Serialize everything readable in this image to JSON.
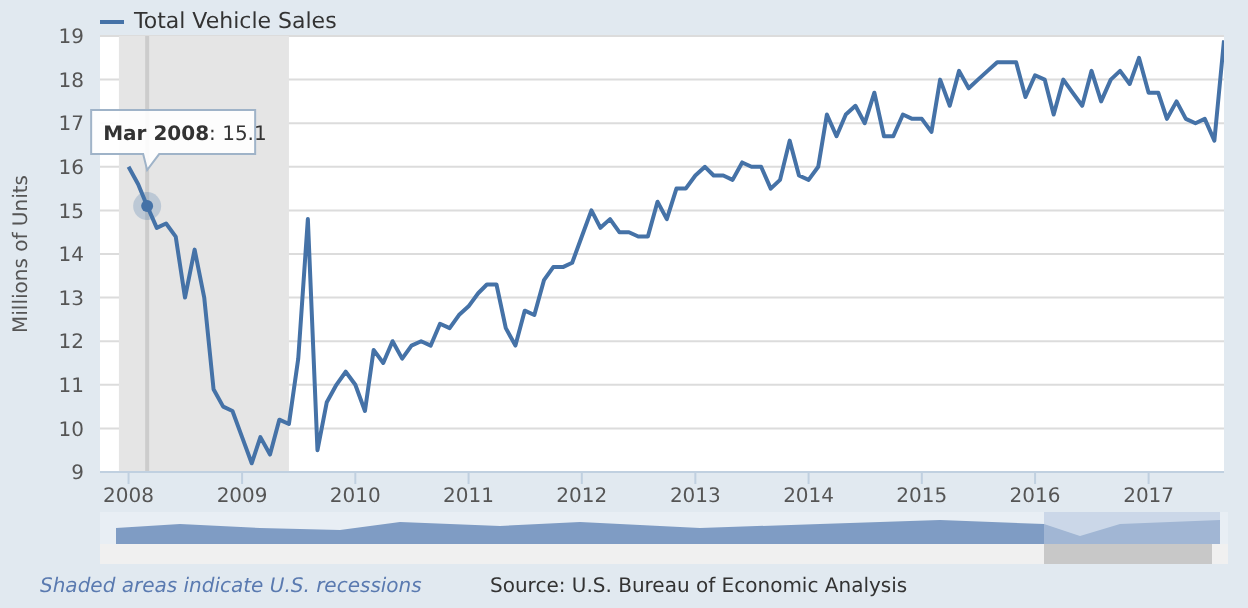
{
  "chart_data": {
    "type": "line",
    "ylabel": "Millions of Units",
    "x": [
      "2008-01",
      "2008-02",
      "2008-03",
      "2008-04",
      "2008-05",
      "2008-06",
      "2008-07",
      "2008-08",
      "2008-09",
      "2008-10",
      "2008-11",
      "2008-12",
      "2009-01",
      "2009-02",
      "2009-03",
      "2009-04",
      "2009-05",
      "2009-06",
      "2009-07",
      "2009-08",
      "2009-09",
      "2009-10",
      "2009-11",
      "2009-12",
      "2010-01",
      "2010-02",
      "2010-03",
      "2010-04",
      "2010-05",
      "2010-06",
      "2010-07",
      "2010-08",
      "2010-09",
      "2010-10",
      "2010-11",
      "2010-12",
      "2011-01",
      "2011-02",
      "2011-03",
      "2011-04",
      "2011-05",
      "2011-06",
      "2011-07",
      "2011-08",
      "2011-09",
      "2011-10",
      "2011-11",
      "2011-12",
      "2012-01",
      "2012-02",
      "2012-03",
      "2012-04",
      "2012-05",
      "2012-06",
      "2012-07",
      "2012-08",
      "2012-09",
      "2012-10",
      "2012-11",
      "2012-12",
      "2013-01",
      "2013-02",
      "2013-03",
      "2013-04",
      "2013-05",
      "2013-06",
      "2013-07",
      "2013-08",
      "2013-09",
      "2013-10",
      "2013-11",
      "2013-12",
      "2014-01",
      "2014-02",
      "2014-03",
      "2014-04",
      "2014-05",
      "2014-06",
      "2014-07",
      "2014-08",
      "2014-09",
      "2014-10",
      "2014-11",
      "2014-12",
      "2015-01",
      "2015-02",
      "2015-03",
      "2015-04",
      "2015-05",
      "2015-06",
      "2015-07",
      "2015-08",
      "2015-09",
      "2015-10",
      "2015-11",
      "2015-12",
      "2016-01",
      "2016-02",
      "2016-03",
      "2016-04",
      "2016-05",
      "2016-06",
      "2016-07",
      "2016-08",
      "2016-09",
      "2016-10",
      "2016-11",
      "2016-12",
      "2017-01",
      "2017-02",
      "2017-03",
      "2017-04",
      "2017-05",
      "2017-06",
      "2017-07",
      "2017-08",
      "2017-09"
    ],
    "series": [
      {
        "name": "Total Vehicle Sales",
        "color": "#4572a7",
        "values": [
          16.0,
          15.6,
          15.1,
          14.6,
          14.7,
          14.4,
          13.0,
          14.1,
          13.0,
          10.9,
          10.5,
          10.4,
          9.8,
          9.2,
          9.8,
          9.4,
          10.2,
          10.1,
          11.6,
          14.8,
          9.5,
          10.6,
          11.0,
          11.3,
          11.0,
          10.4,
          11.8,
          11.5,
          12.0,
          11.6,
          11.9,
          12.0,
          11.9,
          12.4,
          12.3,
          12.6,
          12.8,
          13.1,
          13.3,
          13.3,
          12.3,
          11.9,
          12.7,
          12.6,
          13.4,
          13.7,
          13.7,
          13.8,
          14.4,
          15.0,
          14.6,
          14.8,
          14.5,
          14.5,
          14.4,
          14.4,
          15.2,
          14.8,
          15.5,
          15.5,
          15.8,
          16.0,
          15.8,
          15.8,
          15.7,
          16.1,
          16.0,
          16.0,
          15.5,
          15.7,
          16.6,
          15.8,
          15.7,
          16.0,
          17.2,
          16.7,
          17.2,
          17.4,
          17.0,
          17.7,
          16.7,
          16.7,
          17.2,
          17.1,
          17.1,
          16.8,
          18.0,
          17.4,
          18.2,
          17.8,
          18.0,
          18.2,
          18.4,
          18.4,
          18.4,
          17.6,
          18.1,
          18.0,
          17.2,
          18.0,
          17.7,
          17.4,
          18.2,
          17.5,
          18.0,
          18.2,
          17.9,
          18.5,
          17.7,
          17.7,
          17.1,
          17.5,
          17.1,
          17.0,
          17.1,
          16.6,
          18.9
        ]
      }
    ],
    "xlim": [
      "2007-10",
      "2017-09"
    ],
    "xticks": [
      "2008",
      "2009",
      "2010",
      "2011",
      "2012",
      "2013",
      "2014",
      "2015",
      "2016",
      "2017"
    ],
    "ylim": [
      9,
      19
    ],
    "yticks": [
      9,
      10,
      11,
      12,
      13,
      14,
      15,
      16,
      17,
      18,
      19
    ],
    "grid": "y",
    "legend": "top left",
    "marker": "none",
    "line_style": "solid",
    "bands": [
      {
        "axis": "x",
        "from": "2007-12",
        "to": "2009-06",
        "color": "#e5e5e5"
      }
    ],
    "ref_lines": [
      {
        "axis": "x",
        "value": "2008-03",
        "color": "#cccccc"
      }
    ],
    "annotations": [
      {
        "text": "Mar 2008: 15.1",
        "x": "2008-03",
        "y": 15.1
      },
      "Shaded areas indicate U.S. recessions",
      "Source: U.S. Bureau of Economic Analysis"
    ]
  }
}
